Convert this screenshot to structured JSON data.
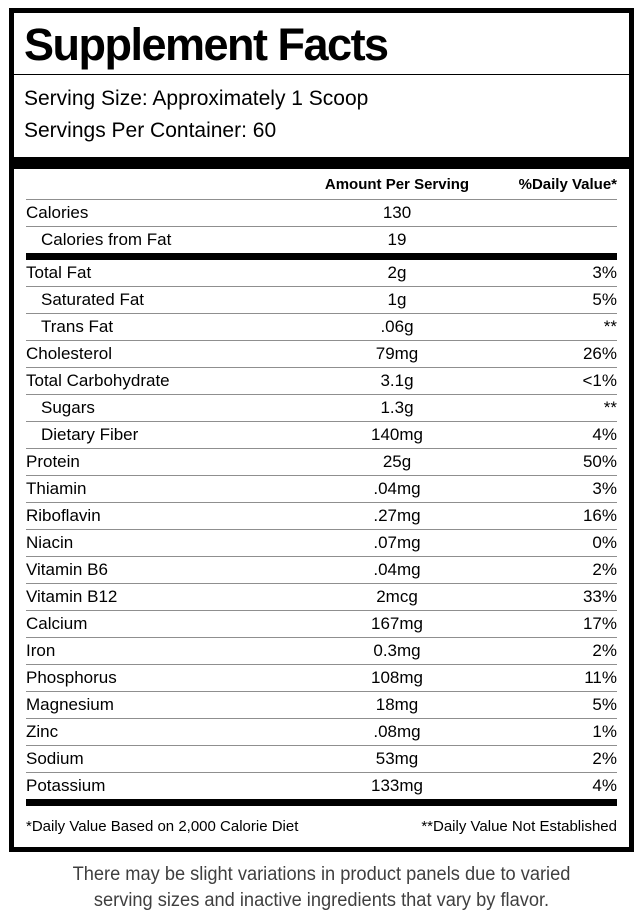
{
  "title": "Supplement Facts",
  "serving": {
    "size": "Serving Size: Approximately 1 Scoop",
    "per_container": "Servings Per Container: 60"
  },
  "table": {
    "headers": {
      "amount": "Amount Per Serving",
      "dv": "%Daily Value*"
    },
    "rows": [
      {
        "label": "Calories",
        "amount": "130",
        "dv": "",
        "indent": false,
        "section_end": false
      },
      {
        "label": "Calories from Fat",
        "amount": "19",
        "dv": "",
        "indent": true,
        "section_end": true
      },
      {
        "label": "Total Fat",
        "amount": "2g",
        "dv": "3%",
        "indent": false,
        "section_end": false
      },
      {
        "label": "Saturated Fat",
        "amount": "1g",
        "dv": "5%",
        "indent": true,
        "section_end": false
      },
      {
        "label": "Trans Fat",
        "amount": ".06g",
        "dv": "**",
        "indent": true,
        "section_end": false
      },
      {
        "label": "Cholesterol",
        "amount": "79mg",
        "dv": "26%",
        "indent": false,
        "section_end": false
      },
      {
        "label": "Total Carbohydrate",
        "amount": "3.1g",
        "dv": "<1%",
        "indent": false,
        "section_end": false
      },
      {
        "label": "Sugars",
        "amount": "1.3g",
        "dv": "**",
        "indent": true,
        "section_end": false
      },
      {
        "label": "Dietary Fiber",
        "amount": "140mg",
        "dv": "4%",
        "indent": true,
        "section_end": false
      },
      {
        "label": "Protein",
        "amount": "25g",
        "dv": "50%",
        "indent": false,
        "section_end": false
      },
      {
        "label": "Thiamin",
        "amount": ".04mg",
        "dv": "3%",
        "indent": false,
        "section_end": false
      },
      {
        "label": "Riboflavin",
        "amount": ".27mg",
        "dv": "16%",
        "indent": false,
        "section_end": false
      },
      {
        "label": "Niacin",
        "amount": ".07mg",
        "dv": "0%",
        "indent": false,
        "section_end": false
      },
      {
        "label": "Vitamin B6",
        "amount": ".04mg",
        "dv": "2%",
        "indent": false,
        "section_end": false
      },
      {
        "label": "Vitamin B12",
        "amount": "2mcg",
        "dv": "33%",
        "indent": false,
        "section_end": false
      },
      {
        "label": "Calcium",
        "amount": "167mg",
        "dv": "17%",
        "indent": false,
        "section_end": false
      },
      {
        "label": "Iron",
        "amount": "0.3mg",
        "dv": "2%",
        "indent": false,
        "section_end": false
      },
      {
        "label": "Phosphorus",
        "amount": "108mg",
        "dv": "11%",
        "indent": false,
        "section_end": false
      },
      {
        "label": "Magnesium",
        "amount": "18mg",
        "dv": "5%",
        "indent": false,
        "section_end": false
      },
      {
        "label": "Zinc",
        "amount": ".08mg",
        "dv": "1%",
        "indent": false,
        "section_end": false
      },
      {
        "label": "Sodium",
        "amount": "53mg",
        "dv": "2%",
        "indent": false,
        "section_end": false
      },
      {
        "label": "Potassium",
        "amount": "133mg",
        "dv": "4%",
        "indent": false,
        "section_end": true
      }
    ]
  },
  "footnotes": {
    "left": "*Daily Value Based on 2,000 Calorie Diet",
    "right": "**Daily Value Not Established"
  },
  "disclaimer": "There may be slight variations in product panels due to varied serving sizes and inactive ingredients that vary by flavor.",
  "colors": {
    "border": "#000000",
    "hairline": "#8f8f8f",
    "disclaimer_text": "#3f3f3f"
  }
}
